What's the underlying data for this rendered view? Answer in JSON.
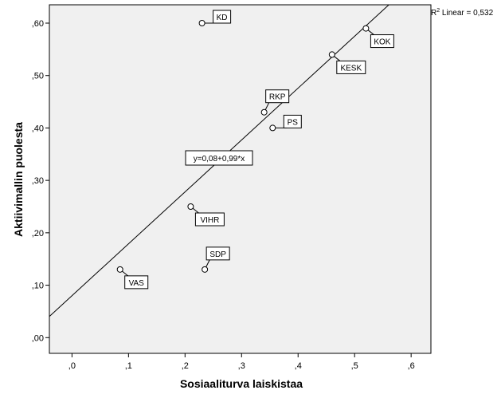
{
  "chart_data": {
    "type": "scatter",
    "xlabel": "Sosiaaliturva laiskistaa",
    "ylabel": "Aktiivimallin puolesta",
    "xlim": [
      -0.04,
      0.635
    ],
    "ylim": [
      -0.03,
      0.635
    ],
    "x_ticks": [
      0,
      0.1,
      0.2,
      0.3,
      0.4,
      0.5,
      0.6
    ],
    "x_tick_labels": [
      ",0",
      ",1",
      ",2",
      ",3",
      ",4",
      ",5",
      ",6"
    ],
    "y_ticks": [
      0,
      0.1,
      0.2,
      0.3,
      0.4,
      0.5,
      0.6
    ],
    "y_tick_labels": [
      ",00",
      ",10",
      ",20",
      ",30",
      ",40",
      ",50",
      ",60"
    ],
    "grid": false,
    "points": [
      {
        "label": "KD",
        "x": 0.23,
        "y": 0.6
      },
      {
        "label": "KOK",
        "x": 0.52,
        "y": 0.59
      },
      {
        "label": "KESK",
        "x": 0.46,
        "y": 0.54
      },
      {
        "label": "RKP",
        "x": 0.34,
        "y": 0.43
      },
      {
        "label": "PS",
        "x": 0.355,
        "y": 0.4
      },
      {
        "label": "VIHR",
        "x": 0.21,
        "y": 0.25
      },
      {
        "label": "SDP",
        "x": 0.235,
        "y": 0.13
      },
      {
        "label": "VAS",
        "x": 0.085,
        "y": 0.13
      }
    ],
    "fit_line": {
      "intercept": 0.08,
      "slope": 0.99,
      "equation_label": "y=0,08+0,99*x",
      "r2_prefix": "R",
      "r2_sup": "2",
      "r2_suffix": " Linear = 0,532"
    }
  }
}
